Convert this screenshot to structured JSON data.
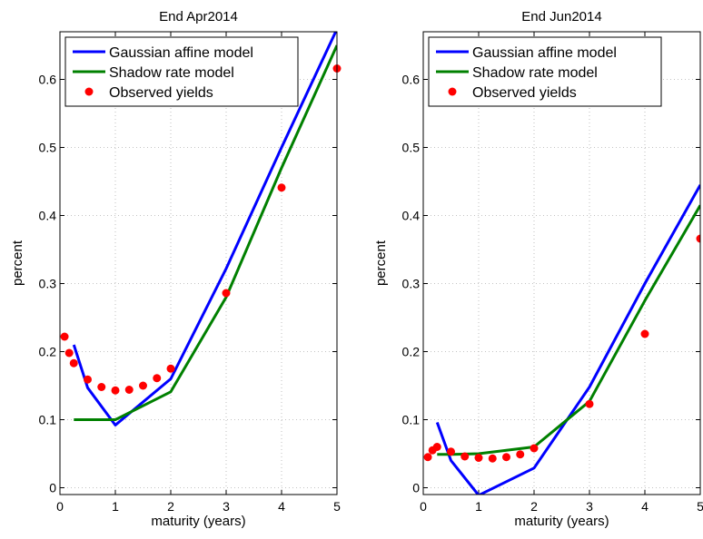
{
  "chart_data": [
    {
      "type": "line",
      "title": "End Apr2014",
      "xlabel": "maturity (years)",
      "ylabel": "percent",
      "xlim": [
        0,
        5
      ],
      "ylim": [
        -0.01,
        0.67
      ],
      "xticks": [
        0,
        1,
        2,
        3,
        4,
        5
      ],
      "yticks": [
        0,
        0.1,
        0.2,
        0.3,
        0.4,
        0.5,
        0.6
      ],
      "xtick_labels": [
        "0",
        "1",
        "2",
        "3",
        "4",
        "5"
      ],
      "ytick_labels": [
        "0",
        "0.1",
        "0.2",
        "0.3",
        "0.4",
        "0.5",
        "0.6"
      ],
      "grid": true,
      "legend_position": "top-left",
      "series": [
        {
          "name": "Gaussian affine model",
          "type": "line",
          "color": "#0000ff",
          "x": [
            0.25,
            0.5,
            1,
            2,
            3,
            4,
            5
          ],
          "y": [
            0.21,
            0.147,
            0.092,
            0.16,
            0.322,
            0.5,
            0.674
          ]
        },
        {
          "name": "Shadow rate model",
          "type": "line",
          "color": "#008000",
          "x": [
            0.25,
            0.5,
            1,
            2,
            3,
            4,
            5
          ],
          "y": [
            0.1,
            0.1,
            0.1,
            0.141,
            0.28,
            0.47,
            0.65
          ]
        },
        {
          "name": "Observed yields",
          "type": "scatter",
          "color": "#ff0000",
          "x": [
            0.083,
            0.167,
            0.25,
            0.5,
            0.75,
            1,
            1.25,
            1.5,
            1.75,
            2,
            3,
            4,
            5
          ],
          "y": [
            0.222,
            0.198,
            0.183,
            0.159,
            0.148,
            0.143,
            0.144,
            0.15,
            0.161,
            0.175,
            0.286,
            0.441,
            0.616
          ]
        }
      ]
    },
    {
      "type": "line",
      "title": "End Jun2014",
      "xlabel": "maturity (years)",
      "ylabel": "percent",
      "xlim": [
        0,
        5
      ],
      "ylim": [
        -0.01,
        0.67
      ],
      "xticks": [
        0,
        1,
        2,
        3,
        4,
        5
      ],
      "yticks": [
        0,
        0.1,
        0.2,
        0.3,
        0.4,
        0.5,
        0.6
      ],
      "xtick_labels": [
        "0",
        "1",
        "2",
        "3",
        "4",
        "5"
      ],
      "ytick_labels": [
        "0",
        "0.1",
        "0.2",
        "0.3",
        "0.4",
        "0.5",
        "0.6"
      ],
      "grid": true,
      "legend_position": "top-left",
      "series": [
        {
          "name": "Gaussian affine model",
          "type": "line",
          "color": "#0000ff",
          "x": [
            0.25,
            0.5,
            1,
            2,
            3,
            4,
            5
          ],
          "y": [
            0.096,
            0.04,
            -0.011,
            0.029,
            0.148,
            0.3,
            0.445
          ]
        },
        {
          "name": "Shadow rate model",
          "type": "line",
          "color": "#008000",
          "x": [
            0.25,
            0.5,
            1,
            2,
            3,
            4,
            5
          ],
          "y": [
            0.049,
            0.049,
            0.05,
            0.06,
            0.127,
            0.275,
            0.415
          ]
        },
        {
          "name": "Observed yields",
          "type": "scatter",
          "color": "#ff0000",
          "x": [
            0.083,
            0.167,
            0.25,
            0.5,
            0.75,
            1,
            1.25,
            1.5,
            1.75,
            2,
            3,
            4,
            5
          ],
          "y": [
            0.045,
            0.055,
            0.06,
            0.053,
            0.046,
            0.044,
            0.043,
            0.045,
            0.049,
            0.058,
            0.123,
            0.226,
            0.366
          ]
        }
      ]
    }
  ]
}
